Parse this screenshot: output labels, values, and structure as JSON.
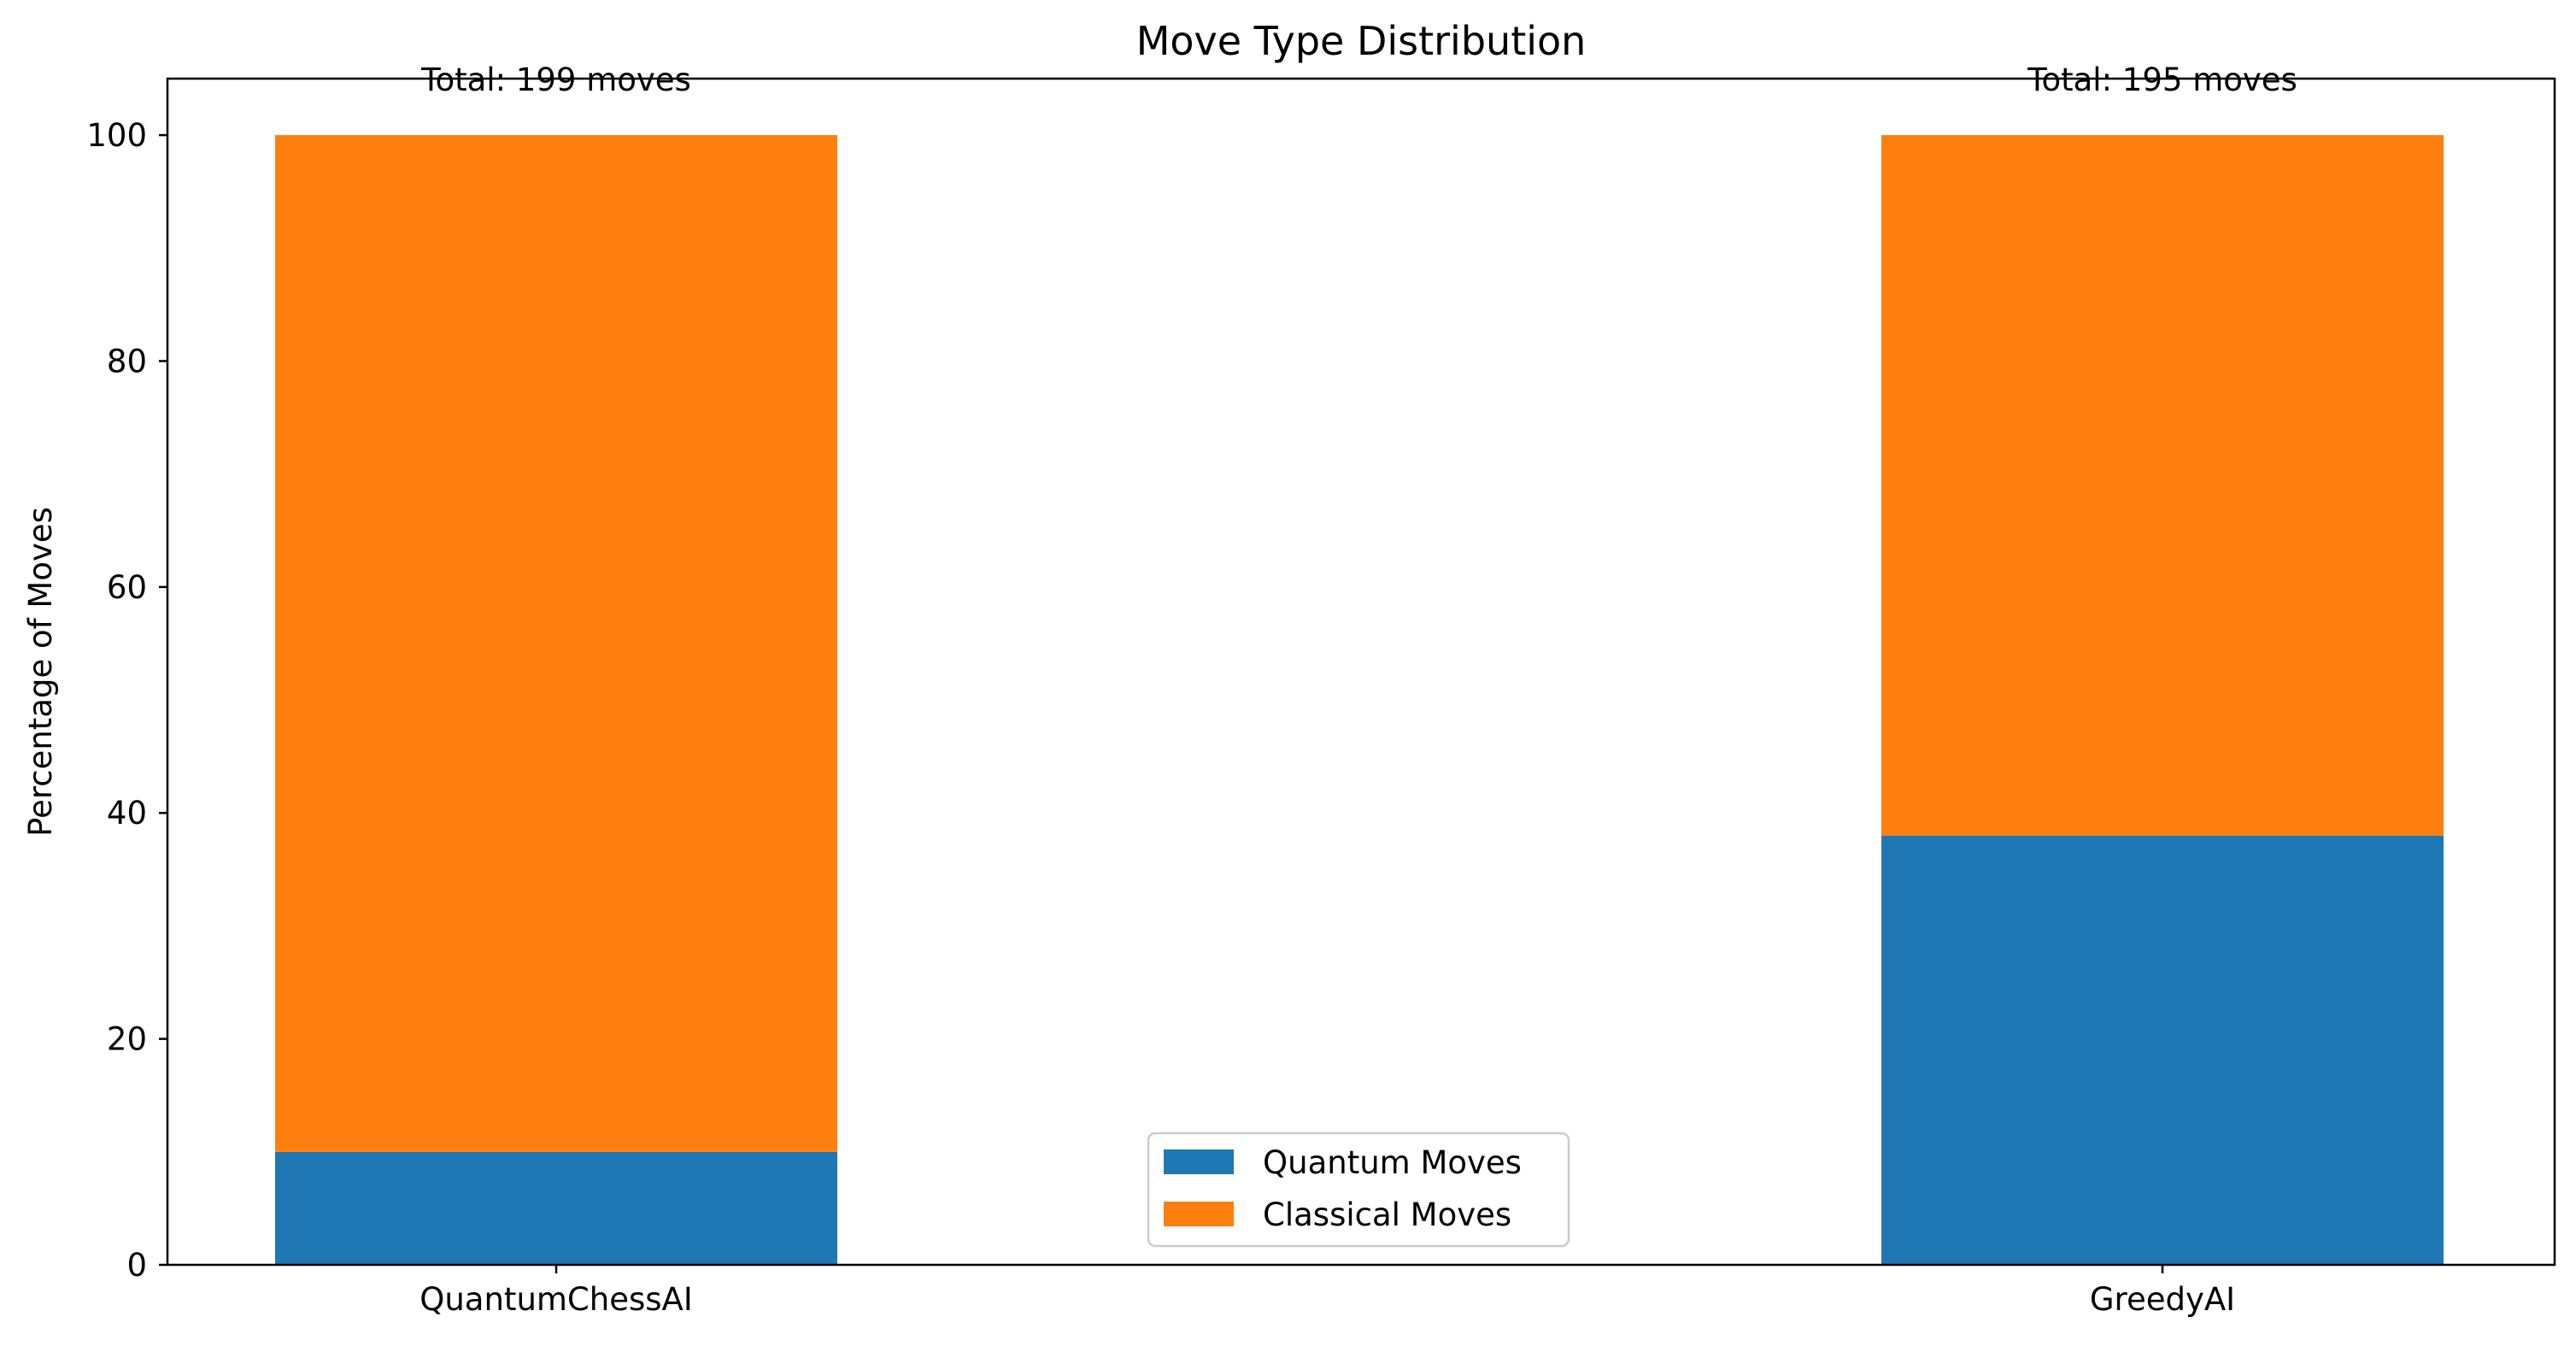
{
  "chart_data": {
    "type": "bar",
    "stacked": true,
    "title": "Move Type Distribution",
    "xlabel": "",
    "ylabel": "Percentage of Moves",
    "categories": [
      "QuantumChessAI",
      "GreedyAI"
    ],
    "series": [
      {
        "name": "Quantum Moves",
        "values": [
          10,
          38
        ],
        "color": "#1f77b4"
      },
      {
        "name": "Classical Moves",
        "values": [
          90,
          62
        ],
        "color": "#ff7f0e"
      }
    ],
    "annotations": [
      "Total: 199 moves",
      "Total: 195 moves"
    ],
    "ylim": [
      0,
      105
    ],
    "yticks": [
      0,
      20,
      40,
      60,
      80,
      100
    ],
    "grid": false,
    "legend_position": "bottom-center"
  }
}
